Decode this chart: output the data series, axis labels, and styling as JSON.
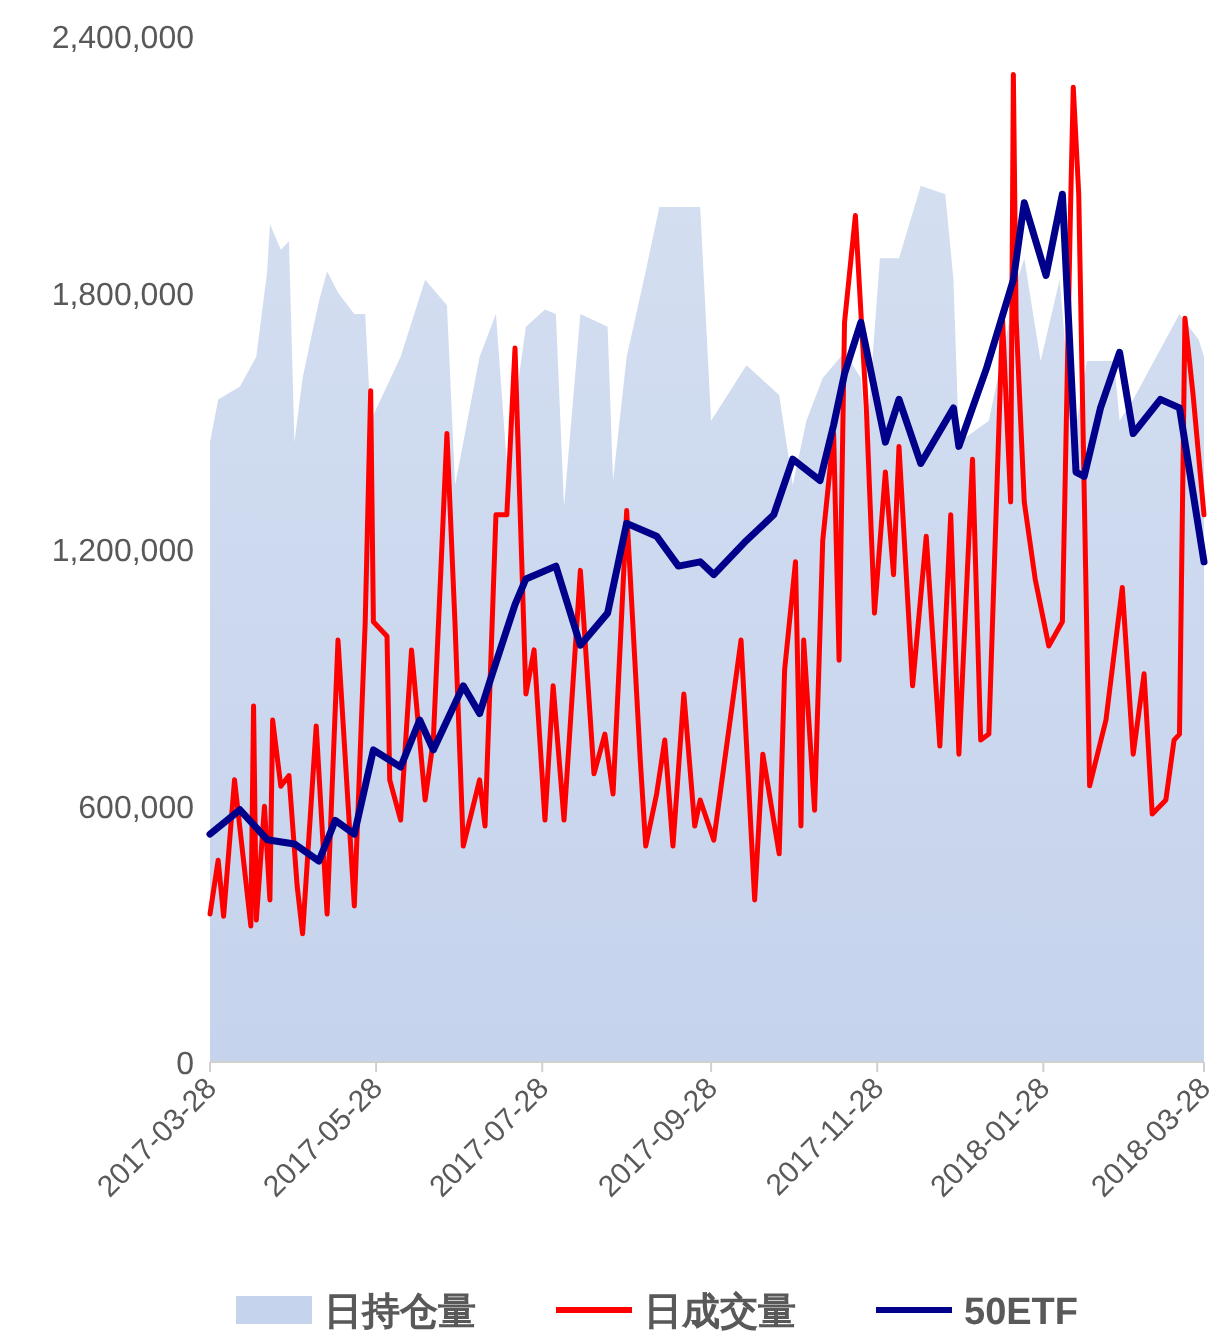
{
  "chart_data": {
    "type": "line",
    "legend": "bottom",
    "grid": false,
    "xlim": [
      "2017-03-28",
      "2018-03-28"
    ],
    "xticks": [
      "2017-03-28",
      "2017-05-28",
      "2017-07-28",
      "2017-09-28",
      "2017-11-28",
      "2018-01-28",
      "2018-03-28"
    ],
    "ylim": [
      0,
      2400000
    ],
    "yticks": [
      0,
      {
        "value": 600000,
        "label": "600,000"
      },
      {
        "value": 1200000,
        "label": "1,200,000"
      },
      {
        "value": 1800000,
        "label": "1,800,000"
      },
      {
        "value": 2400000,
        "label": "2,400,000"
      }
    ],
    "series": [
      {
        "name": "日持仓量",
        "type": "area",
        "color": "#c5d3ec",
        "x": [
          "2017-03-28",
          "2017-03-31",
          "2017-04-08",
          "2017-04-14",
          "2017-04-18",
          "2017-04-19",
          "2017-04-23",
          "2017-04-26",
          "2017-04-28",
          "2017-05-01",
          "2017-05-07",
          "2017-05-10",
          "2017-05-14",
          "2017-05-20",
          "2017-05-24",
          "2017-05-26",
          "2017-06-06",
          "2017-06-15",
          "2017-06-23",
          "2017-06-26",
          "2017-07-05",
          "2017-07-11",
          "2017-07-15",
          "2017-07-22",
          "2017-07-29",
          "2017-08-02",
          "2017-08-05",
          "2017-08-11",
          "2017-08-21",
          "2017-08-23",
          "2017-08-28",
          "2017-09-04",
          "2017-09-09",
          "2017-09-16",
          "2017-09-24",
          "2017-09-28",
          "2017-10-11",
          "2017-10-23",
          "2017-10-28",
          "2017-11-02",
          "2017-11-08",
          "2017-11-16",
          "2017-11-22",
          "2017-11-24",
          "2017-11-29",
          "2017-12-06",
          "2017-12-14",
          "2017-12-23",
          "2017-12-26",
          "2017-12-28",
          "2018-01-08",
          "2018-01-19",
          "2018-01-21",
          "2018-01-27",
          "2018-02-03",
          "2018-02-08",
          "2018-02-13",
          "2018-02-23",
          "2018-02-25",
          "2018-03-02",
          "2018-03-19",
          "2018-03-26",
          "2018-03-28"
        ],
        "values": [
          1450000,
          1550000,
          1580000,
          1650000,
          1850000,
          1960000,
          1900000,
          1920000,
          1450000,
          1600000,
          1780000,
          1850000,
          1800000,
          1750000,
          1750000,
          1500000,
          1650000,
          1830000,
          1770000,
          1350000,
          1650000,
          1750000,
          1400000,
          1720000,
          1760000,
          1750000,
          1300000,
          1750000,
          1720000,
          1360000,
          1650000,
          1850000,
          2000000,
          2000000,
          2000000,
          1500000,
          1630000,
          1560000,
          1350000,
          1500000,
          1600000,
          1660000,
          1600000,
          1450000,
          1880000,
          1880000,
          2050000,
          2030000,
          1830000,
          1450000,
          1500000,
          1840000,
          1880000,
          1640000,
          1830000,
          1450000,
          1640000,
          1640000,
          1500000,
          1550000,
          1750000,
          1690000,
          1650000
        ]
      },
      {
        "name": "日成交量",
        "type": "line",
        "color": "#ff0000",
        "x": [
          "2017-03-28",
          "2017-03-31",
          "2017-04-02",
          "2017-04-06",
          "2017-04-12",
          "2017-04-13",
          "2017-04-14",
          "2017-04-17",
          "2017-04-19",
          "2017-04-20",
          "2017-04-23",
          "2017-04-26",
          "2017-04-29",
          "2017-05-01",
          "2017-05-06",
          "2017-05-10",
          "2017-05-14",
          "2017-05-20",
          "2017-05-24",
          "2017-05-26",
          "2017-05-27",
          "2017-06-01",
          "2017-06-02",
          "2017-06-06",
          "2017-06-10",
          "2017-06-15",
          "2017-06-18",
          "2017-06-23",
          "2017-06-26",
          "2017-06-29",
          "2017-07-05",
          "2017-07-07",
          "2017-07-11",
          "2017-07-15",
          "2017-07-18",
          "2017-07-22",
          "2017-07-25",
          "2017-07-29",
          "2017-08-01",
          "2017-08-05",
          "2017-08-11",
          "2017-08-16",
          "2017-08-20",
          "2017-08-23",
          "2017-08-28",
          "2017-09-02",
          "2017-09-04",
          "2017-09-08",
          "2017-09-11",
          "2017-09-14",
          "2017-09-18",
          "2017-09-22",
          "2017-09-24",
          "2017-09-29",
          "2017-10-09",
          "2017-10-14",
          "2017-10-17",
          "2017-10-23",
          "2017-10-25",
          "2017-10-29",
          "2017-10-31",
          "2017-11-01",
          "2017-11-05",
          "2017-11-08",
          "2017-11-12",
          "2017-11-14",
          "2017-11-16",
          "2017-11-20",
          "2017-11-24",
          "2017-11-27",
          "2017-12-01",
          "2017-12-04",
          "2017-12-06",
          "2017-12-11",
          "2017-12-16",
          "2017-12-21",
          "2017-12-25",
          "2017-12-28",
          "2018-01-02",
          "2018-01-05",
          "2018-01-08",
          "2018-01-13",
          "2018-01-16",
          "2018-01-17",
          "2018-01-18",
          "2018-01-21",
          "2018-01-25",
          "2018-01-30",
          "2018-02-04",
          "2018-02-07",
          "2018-02-08",
          "2018-02-10",
          "2018-02-14",
          "2018-02-20",
          "2018-02-26",
          "2018-03-02",
          "2018-03-06",
          "2018-03-09",
          "2018-03-14",
          "2018-03-17",
          "2018-03-19",
          "2018-03-21",
          "2018-03-24",
          "2018-03-28"
        ],
        "values": [
          346000,
          472000,
          341000,
          660000,
          318000,
          833000,
          332000,
          598000,
          379000,
          800000,
          645000,
          670000,
          412000,
          300000,
          786000,
          346000,
          987000,
          365000,
          1030000,
          1570000,
          1030000,
          996000,
          660000,
          566000,
          964000,
          613000,
          753000,
          1470000,
          1020000,
          505000,
          660000,
          552000,
          1280000,
          1280000,
          1670000,
          861000,
          964000,
          566000,
          880000,
          566000,
          1150000,
          674000,
          767000,
          627000,
          1290000,
          706000,
          505000,
          627000,
          753000,
          505000,
          861000,
          552000,
          613000,
          519000,
          987000,
          379000,
          720000,
          487000,
          917000,
          1170000,
          552000,
          987000,
          589000,
          1220000,
          1470000,
          940000,
          1730000,
          1980000,
          1530000,
          1050000,
          1380000,
          1140000,
          1440000,
          880000,
          1230000,
          739000,
          1280000,
          720000,
          1410000,
          753000,
          767000,
          1740000,
          1310000,
          2310000,
          1740000,
          1310000,
          1130000,
          973000,
          1030000,
          2000000,
          2280000,
          2030000,
          646000,
          800000,
          1110000,
          720000,
          908000,
          580000,
          613000,
          753000,
          767000,
          1740000,
          1560000,
          1280000
        ]
      },
      {
        "name": "50ETF",
        "type": "line",
        "color": "#00008b",
        "x": [
          "2017-03-28",
          "2017-04-08",
          "2017-04-18",
          "2017-04-28",
          "2017-05-07",
          "2017-05-13",
          "2017-05-20",
          "2017-05-27",
          "2017-06-06",
          "2017-06-13",
          "2017-06-18",
          "2017-06-29",
          "2017-07-05",
          "2017-07-09",
          "2017-07-18",
          "2017-07-22",
          "2017-08-02",
          "2017-08-11",
          "2017-08-21",
          "2017-08-28",
          "2017-09-08",
          "2017-09-16",
          "2017-09-24",
          "2017-09-29",
          "2017-10-11",
          "2017-10-21",
          "2017-10-28",
          "2017-11-07",
          "2017-11-12",
          "2017-11-16",
          "2017-11-22",
          "2017-12-01",
          "2017-12-06",
          "2017-12-14",
          "2017-12-26",
          "2017-12-28",
          "2018-01-07",
          "2018-01-17",
          "2018-01-21",
          "2018-01-29",
          "2018-02-04",
          "2018-02-09",
          "2018-02-12",
          "2018-02-18",
          "2018-02-25",
          "2018-03-02",
          "2018-03-12",
          "2018-03-19",
          "2018-03-24",
          "2018-03-28"
        ],
        "values": [
          533000,
          590000,
          520000,
          510000,
          470000,
          565000,
          533000,
          730000,
          690000,
          800000,
          730000,
          880000,
          815000,
          895000,
          1070000,
          1130000,
          1160000,
          975000,
          1050000,
          1260000,
          1230000,
          1160000,
          1170000,
          1140000,
          1220000,
          1280000,
          1410000,
          1360000,
          1490000,
          1610000,
          1730000,
          1450000,
          1550000,
          1400000,
          1530000,
          1440000,
          1620000,
          1830000,
          2010000,
          1840000,
          2030000,
          1380000,
          1370000,
          1530000,
          1660000,
          1470000,
          1550000,
          1530000,
          1330000,
          1170000
        ]
      }
    ]
  }
}
